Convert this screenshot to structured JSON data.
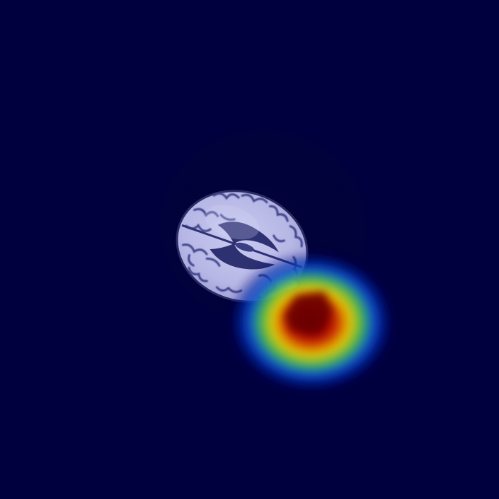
{
  "image": {
    "kind": "brain MRI axial slice with heatmap overlay",
    "colors": {
      "background": "#00003f",
      "head_shadow": "#02023a",
      "brain_tissue": "#b7b8e6",
      "brain_highlight": "#d7d8f6",
      "sulci": "#3c3f86",
      "ventricle": "#2a2f6e",
      "heat_core": "#7a0000",
      "heat_hot": "#c81400",
      "heat_warm": "#f0d000",
      "heat_mid": "#38c030",
      "heat_cool": "#0a3cc8"
    }
  }
}
